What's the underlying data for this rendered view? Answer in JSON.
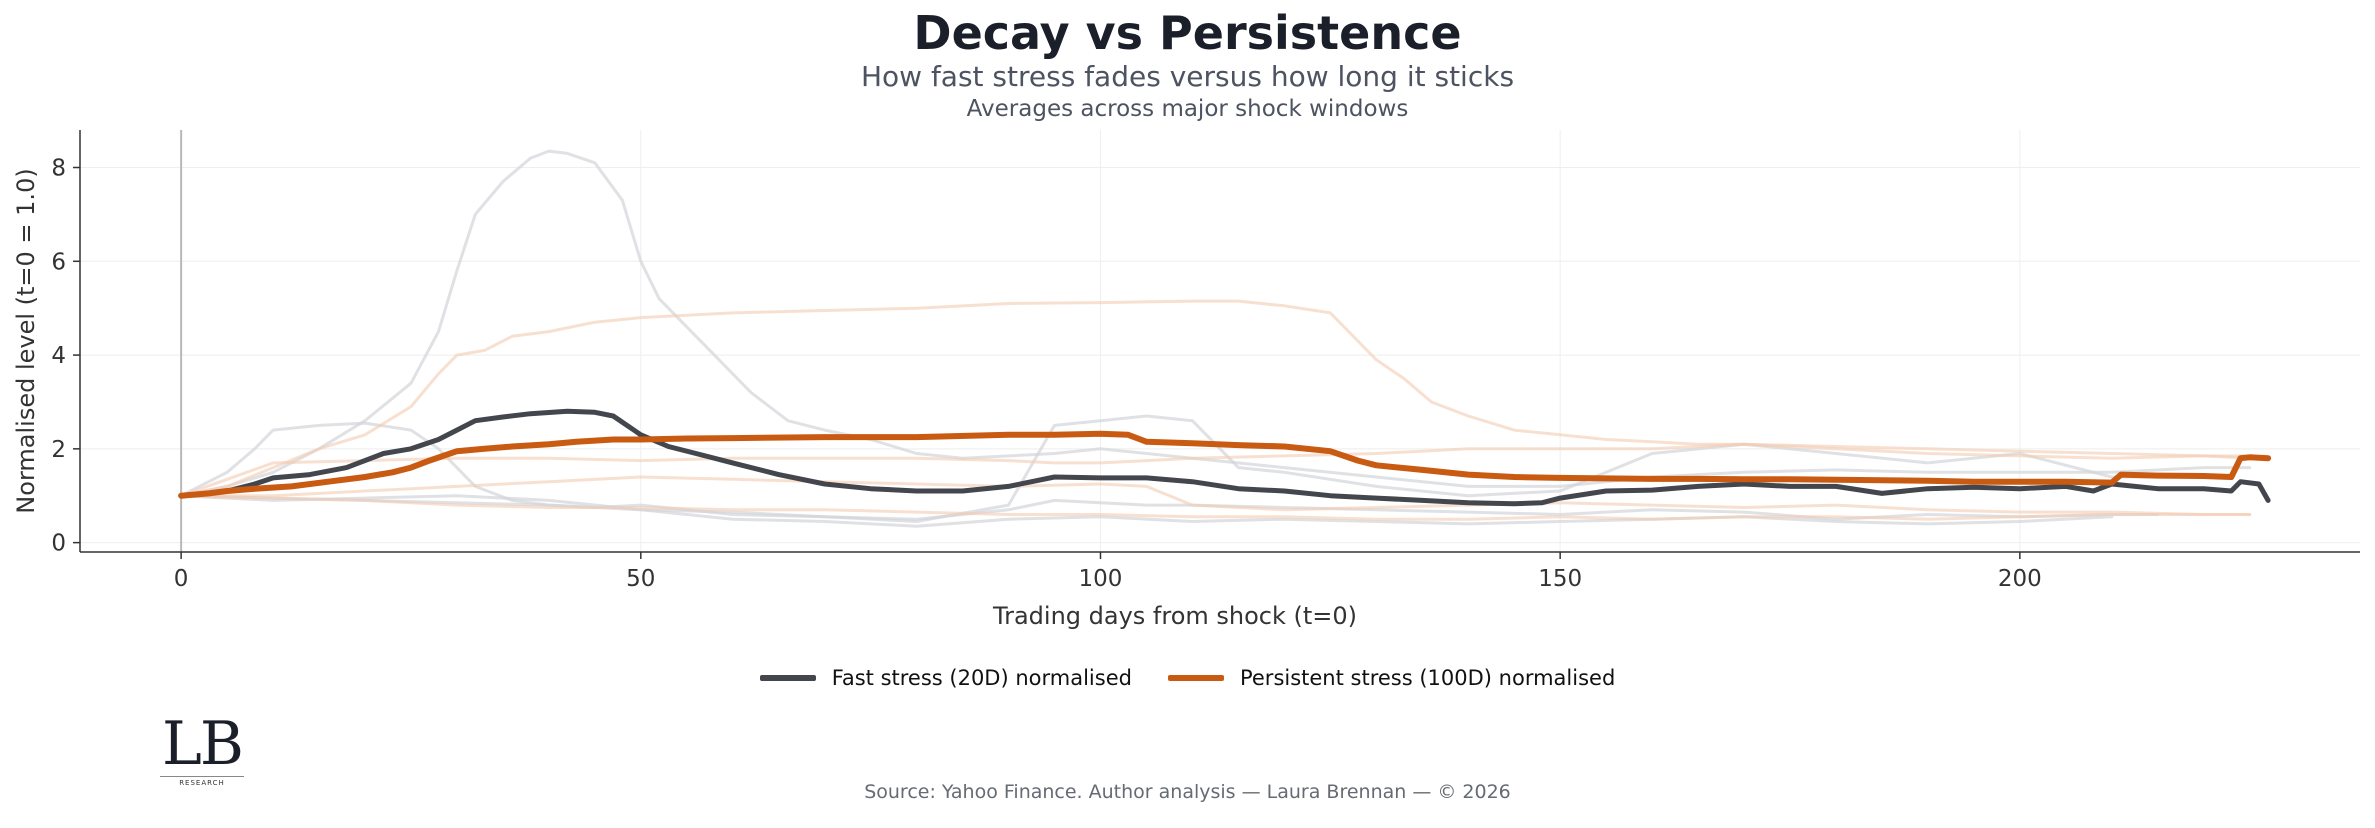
{
  "title": "Decay vs Persistence",
  "subtitle": "How fast stress fades versus how long it sticks",
  "subsubtitle": "Averages across major shock windows",
  "source": "Source: Yahoo Finance. Author analysis — Laura Brennan — © 2026",
  "logo": {
    "mark": "LB",
    "sub": "RESEARCH"
  },
  "colors": {
    "fast": "#44464e",
    "persistent": "#c85a12",
    "bg_gray": "#d2d4d8",
    "bg_orange": "#f3cbb2",
    "axis": "#333333",
    "grid": "#eeeeee"
  },
  "chart_data": {
    "type": "line",
    "xlabel": "Trading days from shock (t=0)",
    "ylabel": "Normalised level (t=0 = 1.0)",
    "xlim": [
      -11,
      237
    ],
    "ylim": [
      -0.2,
      8.8
    ],
    "xticks": [
      0,
      50,
      100,
      150,
      200
    ],
    "yticks": [
      0,
      2,
      4,
      6,
      8
    ],
    "grid": true,
    "legend_position": "bottom-center",
    "series": [
      {
        "name": "Fast stress (20D) normalised",
        "role": "fast",
        "x": [
          0,
          3,
          5,
          8,
          10,
          14,
          18,
          22,
          25,
          28,
          30,
          32,
          35,
          38,
          42,
          45,
          47,
          50,
          53,
          56,
          60,
          65,
          70,
          75,
          80,
          85,
          90,
          95,
          100,
          105,
          110,
          115,
          120,
          125,
          130,
          135,
          140,
          145,
          148,
          150,
          155,
          160,
          165,
          170,
          175,
          180,
          185,
          190,
          195,
          200,
          205,
          208,
          210,
          215,
          220,
          223,
          224,
          226,
          227
        ],
        "y": [
          1.0,
          1.05,
          1.1,
          1.25,
          1.38,
          1.45,
          1.6,
          1.9,
          2.0,
          2.2,
          2.4,
          2.6,
          2.68,
          2.75,
          2.8,
          2.78,
          2.7,
          2.3,
          2.05,
          1.9,
          1.7,
          1.45,
          1.25,
          1.15,
          1.1,
          1.1,
          1.2,
          1.4,
          1.38,
          1.38,
          1.3,
          1.15,
          1.1,
          1.0,
          0.95,
          0.9,
          0.85,
          0.83,
          0.85,
          0.95,
          1.1,
          1.12,
          1.2,
          1.25,
          1.2,
          1.2,
          1.05,
          1.15,
          1.18,
          1.15,
          1.2,
          1.1,
          1.25,
          1.15,
          1.15,
          1.1,
          1.3,
          1.25,
          0.9
        ]
      },
      {
        "name": "Persistent stress (100D) normalised",
        "role": "persistent",
        "x": [
          0,
          3,
          5,
          8,
          12,
          16,
          20,
          23,
          25,
          27,
          30,
          33,
          36,
          40,
          43,
          47,
          50,
          55,
          60,
          70,
          80,
          90,
          95,
          100,
          103,
          105,
          110,
          115,
          120,
          125,
          128,
          130,
          135,
          140,
          145,
          150,
          155,
          160,
          165,
          170,
          175,
          180,
          185,
          190,
          195,
          200,
          205,
          210,
          211,
          215,
          220,
          223,
          224,
          225,
          227
        ],
        "y": [
          1.0,
          1.05,
          1.1,
          1.15,
          1.2,
          1.3,
          1.4,
          1.5,
          1.6,
          1.75,
          1.95,
          2.0,
          2.05,
          2.1,
          2.15,
          2.2,
          2.2,
          2.22,
          2.23,
          2.25,
          2.25,
          2.3,
          2.3,
          2.32,
          2.3,
          2.15,
          2.12,
          2.08,
          2.05,
          1.95,
          1.75,
          1.65,
          1.55,
          1.45,
          1.4,
          1.38,
          1.37,
          1.36,
          1.36,
          1.35,
          1.35,
          1.34,
          1.33,
          1.32,
          1.3,
          1.3,
          1.3,
          1.28,
          1.45,
          1.43,
          1.42,
          1.4,
          1.8,
          1.82,
          1.8
        ]
      },
      {
        "name": "",
        "role": "bg_gray",
        "x": [
          0,
          5,
          10,
          15,
          20,
          25,
          28,
          30,
          32,
          35,
          38,
          40,
          42,
          45,
          48,
          50,
          52,
          55,
          58,
          62,
          66,
          70,
          75,
          80,
          85,
          90,
          95,
          100,
          110,
          120,
          130,
          140,
          150,
          160,
          170,
          180,
          190,
          200,
          210,
          220,
          225
        ],
        "y": [
          1.0,
          1.2,
          1.5,
          2.0,
          2.6,
          3.4,
          4.5,
          5.8,
          7.0,
          7.7,
          8.2,
          8.35,
          8.3,
          8.1,
          7.3,
          6.0,
          5.2,
          4.6,
          4.0,
          3.2,
          2.6,
          2.4,
          2.2,
          1.9,
          1.8,
          1.85,
          1.9,
          2.0,
          1.8,
          1.6,
          1.4,
          1.2,
          1.2,
          1.4,
          1.5,
          1.55,
          1.5,
          1.5,
          1.5,
          1.6,
          1.6
        ]
      },
      {
        "name": "",
        "role": "bg_gray",
        "x": [
          0,
          5,
          8,
          10,
          15,
          20,
          25,
          28,
          32,
          36,
          40,
          45,
          50,
          55,
          60,
          70,
          80,
          90,
          95,
          100,
          105,
          110,
          120,
          130,
          140,
          150,
          160,
          170,
          180,
          190,
          200,
          210,
          215
        ],
        "y": [
          1.0,
          1.5,
          2.0,
          2.4,
          2.5,
          2.55,
          2.4,
          2.0,
          1.2,
          0.9,
          0.8,
          0.75,
          0.8,
          0.7,
          0.6,
          0.55,
          0.5,
          0.7,
          0.9,
          0.85,
          0.8,
          0.8,
          0.75,
          0.7,
          0.65,
          0.6,
          0.7,
          0.65,
          0.5,
          0.6,
          0.55,
          0.6,
          0.6
        ]
      },
      {
        "name": "",
        "role": "bg_gray",
        "x": [
          0,
          10,
          20,
          30,
          40,
          50,
          60,
          70,
          80,
          90,
          95,
          100,
          105,
          110,
          115,
          120,
          130,
          140,
          150,
          160,
          170,
          180,
          190,
          200,
          210,
          220
        ],
        "y": [
          1.0,
          0.95,
          0.9,
          0.85,
          0.8,
          0.7,
          0.65,
          0.55,
          0.45,
          0.8,
          2.5,
          2.6,
          2.7,
          2.6,
          1.6,
          1.5,
          1.2,
          1.0,
          1.1,
          1.9,
          2.1,
          1.9,
          1.7,
          1.9,
          1.4,
          1.4
        ]
      },
      {
        "name": "",
        "role": "bg_gray",
        "x": [
          0,
          10,
          20,
          30,
          40,
          50,
          60,
          70,
          80,
          90,
          100,
          110,
          120,
          130,
          140,
          150,
          160,
          170,
          180,
          190,
          200,
          210
        ],
        "y": [
          1.0,
          0.9,
          0.95,
          1.0,
          0.9,
          0.7,
          0.5,
          0.45,
          0.35,
          0.5,
          0.55,
          0.45,
          0.5,
          0.45,
          0.4,
          0.45,
          0.5,
          0.55,
          0.45,
          0.4,
          0.45,
          0.55
        ]
      },
      {
        "name": "",
        "role": "bg_orange",
        "x": [
          0,
          5,
          10,
          15,
          20,
          25,
          28,
          30,
          33,
          36,
          40,
          45,
          50,
          60,
          70,
          80,
          90,
          100,
          110,
          115,
          120,
          125,
          128,
          130,
          133,
          136,
          140,
          145,
          150,
          155,
          160,
          165,
          170,
          180,
          190,
          200,
          210,
          220,
          225
        ],
        "y": [
          1.0,
          1.2,
          1.6,
          2.0,
          2.3,
          2.9,
          3.6,
          4.0,
          4.1,
          4.4,
          4.5,
          4.7,
          4.8,
          4.9,
          4.95,
          5.0,
          5.1,
          5.12,
          5.15,
          5.15,
          5.05,
          4.9,
          4.3,
          3.9,
          3.5,
          3.0,
          2.7,
          2.4,
          2.3,
          2.2,
          2.15,
          2.1,
          2.1,
          2.0,
          1.9,
          1.85,
          1.8,
          1.85,
          1.8
        ]
      },
      {
        "name": "",
        "role": "bg_orange",
        "x": [
          0,
          10,
          20,
          30,
          40,
          50,
          60,
          70,
          80,
          90,
          95,
          100,
          105,
          110,
          120,
          130,
          140,
          150,
          160,
          170,
          180,
          190,
          200,
          210,
          220,
          225
        ],
        "y": [
          1.0,
          1.7,
          1.75,
          1.8,
          1.8,
          1.75,
          1.8,
          1.8,
          1.8,
          1.75,
          1.7,
          1.7,
          1.75,
          1.8,
          1.85,
          1.9,
          2.0,
          2.0,
          2.0,
          2.1,
          2.05,
          2.0,
          1.95,
          1.9,
          1.85,
          1.85
        ]
      },
      {
        "name": "",
        "role": "bg_orange",
        "x": [
          0,
          10,
          20,
          25,
          30,
          40,
          50,
          60,
          70,
          80,
          90,
          100,
          105,
          110,
          120,
          130,
          140,
          150,
          160,
          170,
          180,
          190,
          200,
          210,
          220,
          225
        ],
        "y": [
          1.0,
          1.0,
          1.1,
          1.15,
          1.2,
          1.3,
          1.4,
          1.35,
          1.3,
          1.25,
          1.2,
          1.25,
          1.2,
          0.8,
          0.7,
          0.75,
          0.8,
          0.85,
          0.8,
          0.75,
          0.8,
          0.7,
          0.65,
          0.65,
          0.6,
          0.6
        ]
      },
      {
        "name": "",
        "role": "bg_orange",
        "x": [
          0,
          10,
          20,
          25,
          30,
          40,
          50,
          60,
          70,
          80,
          90,
          100,
          110,
          120,
          130,
          140,
          150,
          160,
          170,
          180,
          190,
          200,
          210,
          220,
          225
        ],
        "y": [
          1.0,
          0.95,
          0.9,
          0.85,
          0.8,
          0.75,
          0.75,
          0.7,
          0.7,
          0.65,
          0.6,
          0.6,
          0.55,
          0.55,
          0.5,
          0.5,
          0.55,
          0.5,
          0.55,
          0.55,
          0.5,
          0.55,
          0.6,
          0.6,
          0.6
        ]
      }
    ]
  }
}
